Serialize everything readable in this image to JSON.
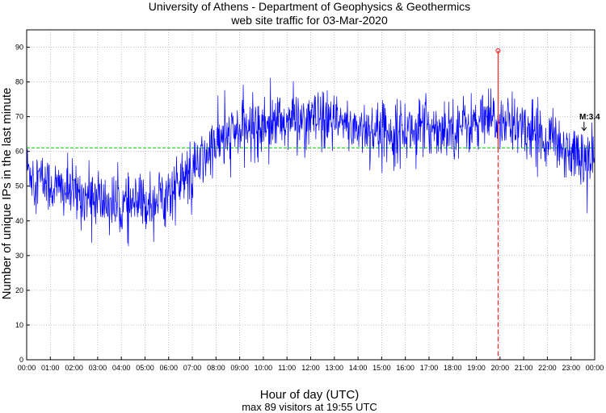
{
  "chart_data": {
    "type": "line",
    "title": "University of Athens - Department of Geophysics & Geothermics",
    "subtitle": "web site traffic for 03-Mar-2020",
    "xlabel": "Hour of day (UTC)",
    "ylabel": "Number of unique IPs in the last minute",
    "footer": "max 89 visitors at 19:55 UTC",
    "xlim": [
      0,
      24
    ],
    "ylim": [
      0,
      95
    ],
    "grid": true,
    "x_ticks": [
      "00:00",
      "01:00",
      "02:00",
      "03:00",
      "04:00",
      "05:00",
      "06:00",
      "07:00",
      "08:00",
      "09:00",
      "10:00",
      "11:00",
      "12:00",
      "13:00",
      "14:00",
      "15:00",
      "16:00",
      "17:00",
      "18:00",
      "19:00",
      "20:00",
      "21:00",
      "22:00",
      "23:00",
      "00:00"
    ],
    "y_ticks": [
      0,
      10,
      20,
      30,
      40,
      50,
      60,
      70,
      80,
      90
    ],
    "series": [
      {
        "color": "#0000ff",
        "hourly_mean": [
          [
            0,
            55
          ],
          [
            1,
            50
          ],
          [
            2,
            48
          ],
          [
            3,
            46
          ],
          [
            4,
            44
          ],
          [
            5,
            45
          ],
          [
            6,
            48
          ],
          [
            7,
            54
          ],
          [
            8,
            62
          ],
          [
            9,
            66
          ],
          [
            10,
            68
          ],
          [
            11,
            69
          ],
          [
            12,
            69
          ],
          [
            13,
            68
          ],
          [
            14,
            67
          ],
          [
            15,
            66
          ],
          [
            16,
            66
          ],
          [
            17,
            67
          ],
          [
            18,
            67
          ],
          [
            19,
            68
          ],
          [
            20,
            69
          ],
          [
            21,
            67
          ],
          [
            22,
            64
          ],
          [
            23,
            60
          ],
          [
            24,
            57
          ]
        ]
      }
    ],
    "reference_line": {
      "value": 61,
      "color": "#00dd00",
      "style": "dashed"
    },
    "max_marker": {
      "x": 19.917,
      "y": 89,
      "color": "#ff0000"
    },
    "annotation": {
      "label": "M:3.4",
      "x": 23.55,
      "y": 66
    }
  },
  "colors": {
    "line": "#0000ff",
    "mean": "#00dd00",
    "max": "#ff0000",
    "grid": "#999999"
  }
}
